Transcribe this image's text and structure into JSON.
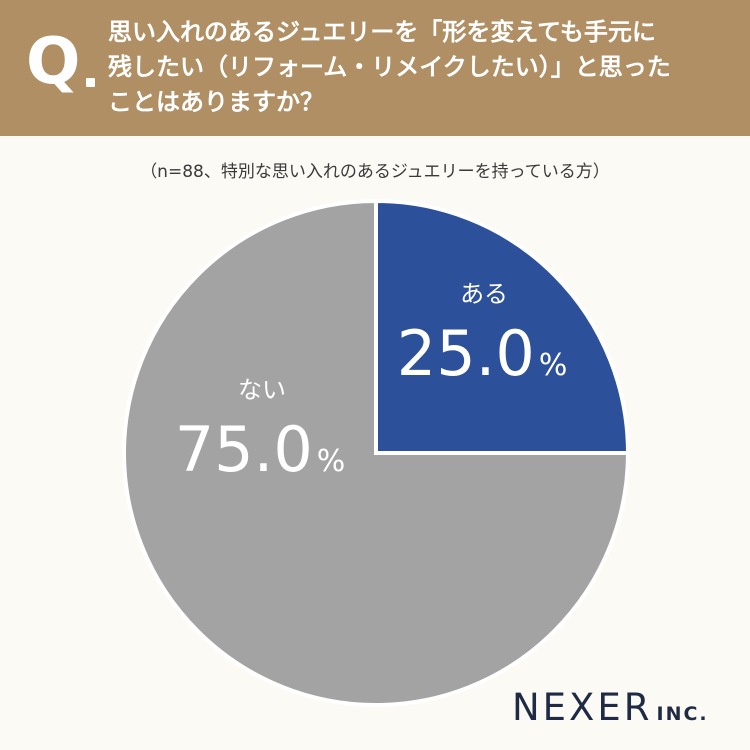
{
  "question": {
    "mark": "Q",
    "lines": [
      "思い入れのあるジュエリーを「形を変えても手元に",
      "残したい（リフォーム・リメイクしたい）」と思った",
      "ことはありますか？"
    ]
  },
  "sample_note": "（n=88、特別な思い入れのあるジュエリーを持っている方）",
  "logo": {
    "main": "NEXER",
    "suffix": "INC."
  },
  "colors": {
    "header": "#b08f64",
    "aru": "#2d509a",
    "nai": "#a3a3a3",
    "background": "#fcfaf5"
  },
  "chart_data": {
    "type": "pie",
    "start": "12 o'clock, clockwise",
    "slices": [
      {
        "label": "ある",
        "value": 25.0,
        "value_text": "25.0",
        "unit": "%",
        "color": "#2d509a"
      },
      {
        "label": "ない",
        "value": 75.0,
        "value_text": "75.0",
        "unit": "%",
        "color": "#a3a3a3"
      }
    ]
  }
}
